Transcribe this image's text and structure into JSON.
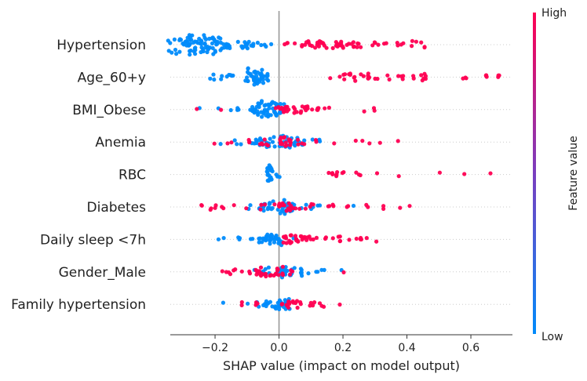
{
  "chart_data": {
    "type": "scatter",
    "subtype": "shap-beeswarm",
    "title": "",
    "xlabel": "SHAP value (impact on model output)",
    "xlim": [
      -0.34,
      0.73
    ],
    "xticks": [
      -0.2,
      0.0,
      0.2,
      0.4,
      0.6
    ],
    "xtick_labels": [
      "−0.2",
      "0.0",
      "0.2",
      "0.4",
      "0.6"
    ],
    "colorbar": {
      "label": "Feature value",
      "high": "High",
      "low": "Low",
      "low_color": "#008bfb",
      "high_color": "#ff0052"
    },
    "features": [
      {
        "name": "Hypertension",
        "low": [
          [
            -0.29,
            -0.07,
            14
          ],
          [
            -0.27,
            0.07,
            22
          ],
          [
            -0.24,
            0.04,
            24
          ],
          [
            -0.21,
            -0.04,
            16
          ],
          [
            -0.18,
            0.1,
            6
          ],
          [
            -0.155,
            -0.02,
            6
          ],
          [
            -0.12,
            0.06,
            5
          ],
          [
            -0.1,
            -0.03,
            6
          ],
          [
            -0.08,
            0.03,
            4
          ],
          [
            -0.05,
            0.05,
            3
          ],
          [
            -0.03,
            0.02,
            2
          ]
        ],
        "high": [
          [
            0.02,
            0,
            2
          ],
          [
            0.05,
            0.02,
            3
          ],
          [
            0.075,
            -0.04,
            3
          ],
          [
            0.1,
            0.03,
            6
          ],
          [
            0.13,
            -0.03,
            5
          ],
          [
            0.16,
            0.04,
            6
          ],
          [
            0.19,
            -0.02,
            8
          ],
          [
            0.21,
            0.03,
            6
          ],
          [
            0.235,
            0.01,
            4
          ],
          [
            0.27,
            0.04,
            3
          ],
          [
            0.3,
            -0.02,
            3
          ],
          [
            0.33,
            0.03,
            3
          ],
          [
            0.37,
            0,
            2
          ],
          [
            0.42,
            0.03,
            6
          ],
          [
            0.45,
            0,
            2
          ]
        ]
      },
      {
        "name": "Age_60+y",
        "low": [
          [
            -0.2,
            -0.03,
            4
          ],
          [
            -0.17,
            0.02,
            2
          ],
          [
            -0.1,
            0.05,
            8
          ],
          [
            -0.08,
            -0.04,
            26
          ],
          [
            -0.06,
            0.02,
            12
          ],
          [
            -0.04,
            0.01,
            3
          ]
        ],
        "high": [
          [
            0.18,
            0.03,
            2
          ],
          [
            0.21,
            -0.02,
            4
          ],
          [
            0.25,
            0.02,
            6
          ],
          [
            0.28,
            -0.01,
            6
          ],
          [
            0.3,
            0.04,
            4
          ],
          [
            0.36,
            0.03,
            3
          ],
          [
            0.39,
            0,
            2
          ],
          [
            0.43,
            0.02,
            5
          ],
          [
            0.46,
            -0.02,
            3
          ],
          [
            0.58,
            0,
            2
          ],
          [
            0.61,
            0.03,
            2
          ],
          [
            0.65,
            0,
            3
          ],
          [
            0.68,
            -0.02,
            3
          ]
        ]
      },
      {
        "name": "BMI_Obese",
        "low": [
          [
            -0.23,
            0.05,
            1
          ],
          [
            -0.2,
            0.02,
            1
          ],
          [
            -0.14,
            -0.02,
            2
          ],
          [
            -0.11,
            0.04,
            3
          ],
          [
            -0.08,
            -0.02,
            6
          ],
          [
            -0.06,
            0.02,
            10
          ],
          [
            -0.04,
            -0.05,
            20
          ],
          [
            -0.02,
            0.03,
            14
          ],
          [
            -0.005,
            -0.03,
            6
          ]
        ],
        "high": [
          [
            -0.26,
            0.01,
            1
          ],
          [
            -0.18,
            -0.01,
            1
          ],
          [
            0.01,
            0.02,
            6
          ],
          [
            0.03,
            -0.04,
            8
          ],
          [
            0.05,
            0.03,
            6
          ],
          [
            0.08,
            -0.02,
            5
          ],
          [
            0.1,
            0.03,
            4
          ],
          [
            0.12,
            -0.01,
            3
          ],
          [
            0.15,
            0.02,
            3
          ],
          [
            0.27,
            0,
            1
          ],
          [
            0.3,
            0.02,
            2
          ]
        ]
      },
      {
        "name": "Anemia",
        "low": [
          [
            -0.17,
            0.02,
            1
          ],
          [
            -0.12,
            -0.03,
            2
          ],
          [
            -0.09,
            0.04,
            3
          ],
          [
            -0.06,
            -0.02,
            6
          ],
          [
            -0.03,
            0.05,
            10
          ],
          [
            0,
            -0.05,
            14
          ],
          [
            0.03,
            0.02,
            8
          ],
          [
            0.06,
            -0.03,
            4
          ],
          [
            0.09,
            0.03,
            3
          ],
          [
            0.12,
            0,
            3
          ]
        ],
        "high": [
          [
            -0.21,
            0.01,
            1
          ],
          [
            -0.16,
            -0.02,
            1
          ],
          [
            -0.13,
            0.03,
            2
          ],
          [
            -0.1,
            0,
            2
          ],
          [
            -0.07,
            -0.04,
            3
          ],
          [
            -0.02,
            0.04,
            8
          ],
          [
            0.02,
            0.01,
            10
          ],
          [
            0.05,
            -0.03,
            6
          ],
          [
            0.08,
            0.03,
            3
          ],
          [
            0.18,
            0,
            1
          ],
          [
            0.26,
            0.02,
            3
          ],
          [
            0.31,
            0,
            1
          ],
          [
            0.37,
            0,
            1
          ]
        ]
      },
      {
        "name": "RBC",
        "low": [
          [
            -0.03,
            0,
            22
          ],
          [
            -0.01,
            0.02,
            6
          ]
        ],
        "high": [
          [
            0.15,
            0.01,
            4
          ],
          [
            0.18,
            -0.01,
            4
          ],
          [
            0.22,
            0.02,
            3
          ],
          [
            0.25,
            0,
            2
          ],
          [
            0.32,
            0.01,
            1
          ],
          [
            0.37,
            0,
            1
          ],
          [
            0.5,
            0,
            1
          ],
          [
            0.58,
            0,
            1
          ],
          [
            0.66,
            0,
            1
          ]
        ]
      },
      {
        "name": "Diabetes",
        "low": [
          [
            -0.09,
            -0.02,
            2
          ],
          [
            -0.06,
            0.02,
            4
          ],
          [
            -0.03,
            -0.04,
            8
          ],
          [
            0,
            0.03,
            16
          ],
          [
            0.03,
            -0.02,
            10
          ],
          [
            0.06,
            0.04,
            6
          ],
          [
            0.09,
            -0.02,
            3
          ],
          [
            0.12,
            0,
            2
          ],
          [
            0.24,
            0,
            1
          ]
        ],
        "high": [
          [
            -0.23,
            0.01,
            4
          ],
          [
            -0.19,
            -0.02,
            3
          ],
          [
            -0.15,
            0.02,
            2
          ],
          [
            -0.11,
            0,
            1
          ],
          [
            -0.02,
            0.03,
            6
          ],
          [
            0.01,
            -0.03,
            8
          ],
          [
            0.04,
            0.01,
            6
          ],
          [
            0.08,
            -0.03,
            4
          ],
          [
            0.13,
            0.02,
            3
          ],
          [
            0.17,
            -0.01,
            2
          ],
          [
            0.21,
            0,
            2
          ],
          [
            0.28,
            0,
            2
          ],
          [
            0.34,
            0.02,
            2
          ],
          [
            0.38,
            0,
            1
          ],
          [
            0.41,
            0,
            1
          ]
        ]
      },
      {
        "name": "Daily sleep <7h",
        "low": [
          [
            -0.16,
            0.03,
            2
          ],
          [
            -0.12,
            -0.02,
            3
          ],
          [
            -0.08,
            0.02,
            4
          ],
          [
            -0.05,
            -0.04,
            8
          ],
          [
            -0.03,
            0.03,
            14
          ],
          [
            -0.01,
            -0.02,
            10
          ],
          [
            0.01,
            0.04,
            3
          ]
        ],
        "high": [
          [
            0.02,
            0,
            6
          ],
          [
            0.04,
            -0.03,
            8
          ],
          [
            0.06,
            0.03,
            6
          ],
          [
            0.08,
            -0.02,
            5
          ],
          [
            0.11,
            0.02,
            4
          ],
          [
            0.14,
            0,
            2
          ],
          [
            0.18,
            -0.02,
            5
          ],
          [
            0.22,
            0.03,
            3
          ],
          [
            0.25,
            0,
            2
          ],
          [
            0.28,
            0.02,
            2
          ]
        ]
      },
      {
        "name": "Gender_Male",
        "low": [
          [
            -0.07,
            0.03,
            2
          ],
          [
            -0.04,
            -0.02,
            4
          ],
          [
            -0.01,
            0.04,
            8
          ],
          [
            0.02,
            -0.03,
            12
          ],
          [
            0.04,
            0.03,
            8
          ],
          [
            0.07,
            -0.01,
            5
          ],
          [
            0.1,
            0.02,
            3
          ],
          [
            0.14,
            0,
            2
          ],
          [
            0.19,
            0,
            1
          ]
        ],
        "high": [
          [
            -0.16,
            0.01,
            4
          ],
          [
            -0.12,
            -0.03,
            3
          ],
          [
            -0.08,
            0.02,
            4
          ],
          [
            -0.05,
            -0.04,
            8
          ],
          [
            -0.03,
            0.04,
            10
          ],
          [
            -0.01,
            -0.02,
            6
          ],
          [
            0.03,
            0.01,
            3
          ],
          [
            0.2,
            0,
            1
          ]
        ]
      },
      {
        "name": "Family hypertension",
        "low": [
          [
            -0.18,
            0,
            1
          ],
          [
            -0.11,
            -0.02,
            1
          ],
          [
            -0.05,
            0.02,
            3
          ],
          [
            -0.03,
            -0.04,
            6
          ],
          [
            -0.01,
            0.04,
            12
          ],
          [
            0.01,
            -0.02,
            8
          ]
        ],
        "high": [
          [
            -0.1,
            0.02,
            2
          ],
          [
            -0.07,
            -0.02,
            3
          ],
          [
            0.02,
            0.02,
            5
          ],
          [
            0.04,
            -0.03,
            6
          ],
          [
            0.07,
            0.03,
            5
          ],
          [
            0.1,
            -0.02,
            3
          ],
          [
            0.14,
            0.01,
            3
          ],
          [
            0.19,
            0,
            1
          ]
        ]
      }
    ]
  }
}
